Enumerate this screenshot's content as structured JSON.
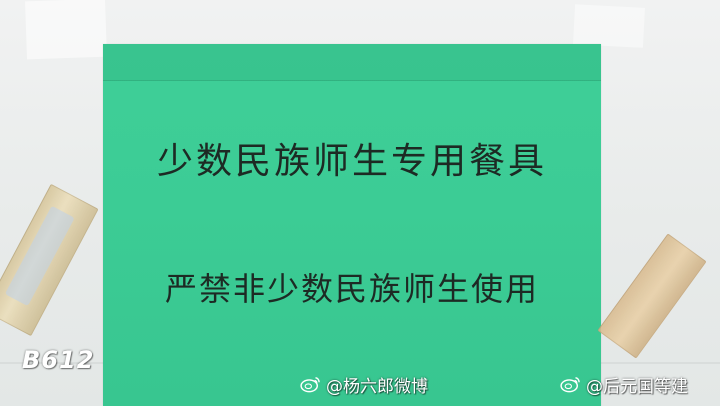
{
  "sign": {
    "line1": "少数民族师生专用餐具",
    "line2": "严禁非少数民族师生使用",
    "paper_color": "#3ccc95",
    "text_color": "#1d2a24"
  },
  "overlay": {
    "camera_badge": "B612",
    "watermark_1": "@杨六郎微博",
    "watermark_2": "@后元国等建",
    "watermark_icon": "weibo-icon"
  }
}
